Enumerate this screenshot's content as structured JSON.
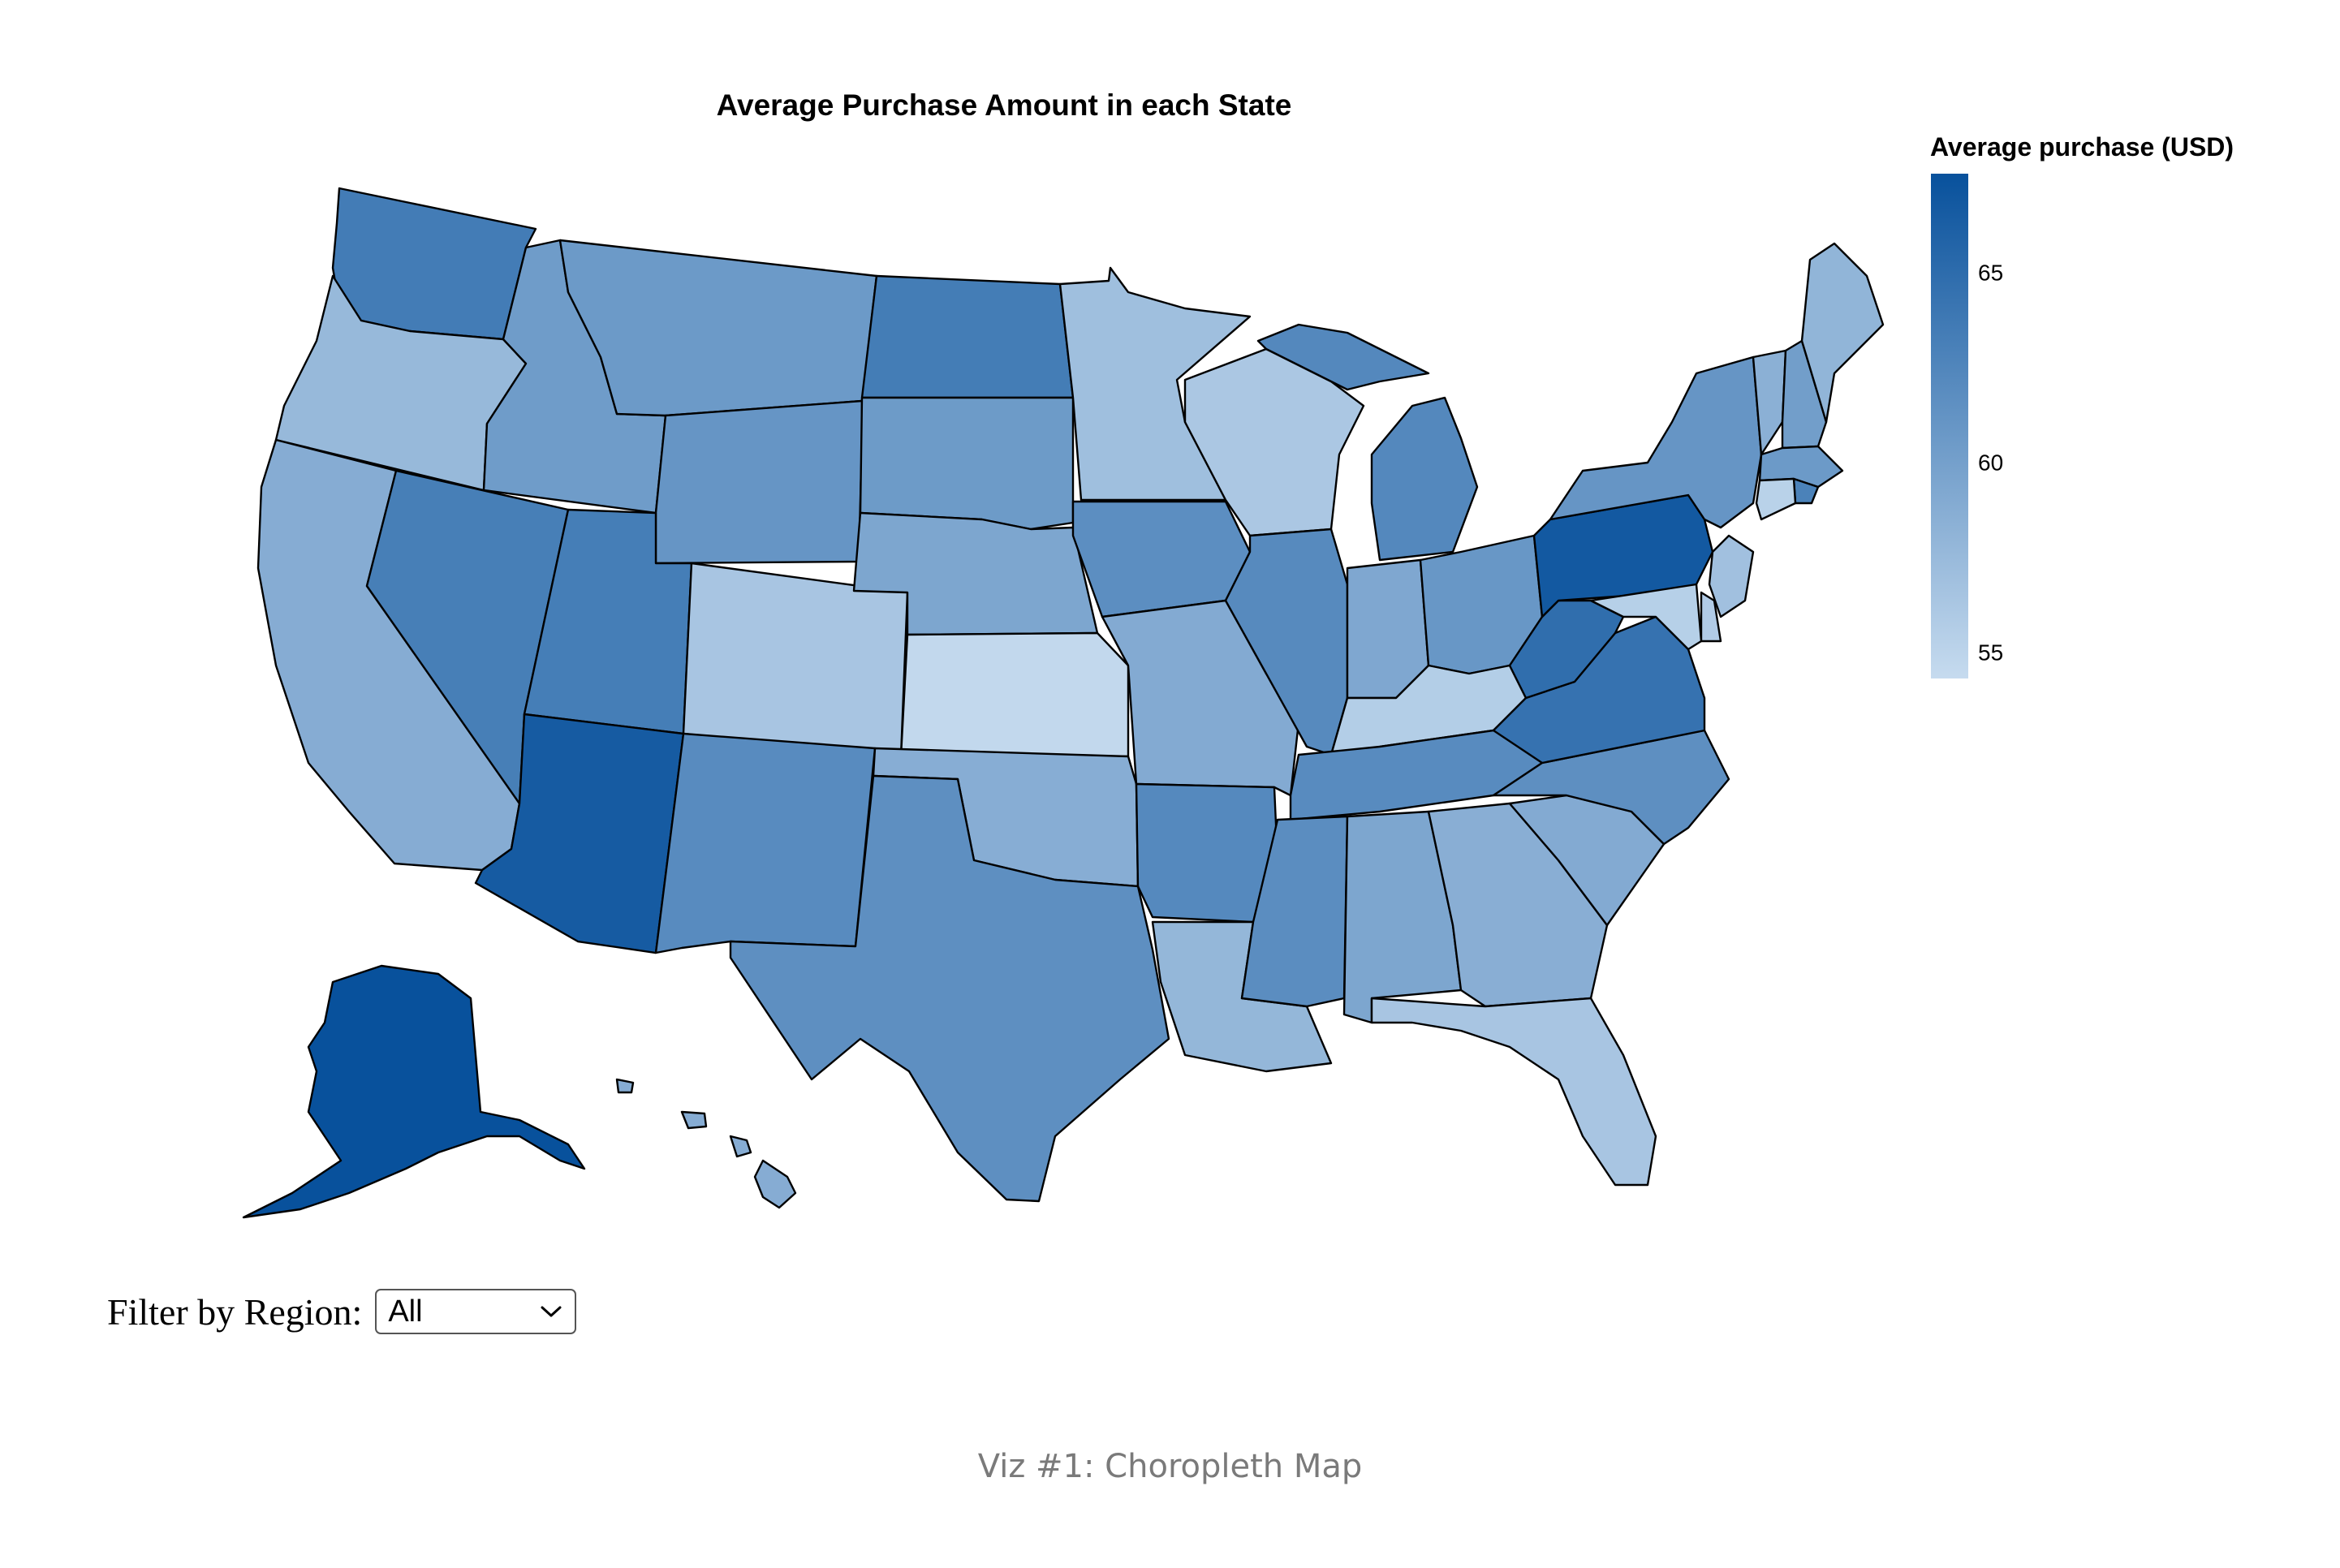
{
  "page": {
    "filter_label": "Filter by Region:",
    "filter_value": "All",
    "caption": "Viz #1: Choropleth Map"
  },
  "chart_data": {
    "type": "choropleth",
    "title": "Average Purchase Amount in each State",
    "legend": {
      "title": "Average purchase (USD)",
      "domain": [
        54.3,
        67.6
      ],
      "ticks": [
        55,
        60,
        65
      ],
      "color_low": "#c6dbef",
      "color_high": "#08519c",
      "placement": "right"
    },
    "states": [
      {
        "name": "Washington",
        "value": 63.5
      },
      {
        "name": "Oregon",
        "value": 57.6
      },
      {
        "name": "California",
        "value": 58.8
      },
      {
        "name": "Idaho",
        "value": 60.4
      },
      {
        "name": "Nevada",
        "value": 63.2
      },
      {
        "name": "Montana",
        "value": 60.6
      },
      {
        "name": "Wyoming",
        "value": 61.0
      },
      {
        "name": "Utah",
        "value": 63.3
      },
      {
        "name": "Arizona",
        "value": 66.6
      },
      {
        "name": "Colorado",
        "value": 56.4
      },
      {
        "name": "New Mexico",
        "value": 62.0
      },
      {
        "name": "North Dakota",
        "value": 63.4
      },
      {
        "name": "South Dakota",
        "value": 60.5
      },
      {
        "name": "Nebraska",
        "value": 59.4
      },
      {
        "name": "Kansas",
        "value": 54.6
      },
      {
        "name": "Oklahoma",
        "value": 58.7
      },
      {
        "name": "Texas",
        "value": 61.6
      },
      {
        "name": "Minnesota",
        "value": 57.0
      },
      {
        "name": "Iowa",
        "value": 61.7
      },
      {
        "name": "Missouri",
        "value": 59.0
      },
      {
        "name": "Arkansas",
        "value": 62.2
      },
      {
        "name": "Louisiana",
        "value": 57.8
      },
      {
        "name": "Wisconsin",
        "value": 56.2
      },
      {
        "name": "Illinois",
        "value": 62.1
      },
      {
        "name": "Michigan",
        "value": 62.3
      },
      {
        "name": "Indiana",
        "value": 59.3
      },
      {
        "name": "Ohio",
        "value": 60.9
      },
      {
        "name": "Kentucky",
        "value": 55.6
      },
      {
        "name": "Tennessee",
        "value": 62.0
      },
      {
        "name": "Mississippi",
        "value": 61.8
      },
      {
        "name": "Alabama",
        "value": 59.4
      },
      {
        "name": "Georgia",
        "value": 58.6
      },
      {
        "name": "Florida",
        "value": 56.4
      },
      {
        "name": "South Carolina",
        "value": 59.0
      },
      {
        "name": "North Carolina",
        "value": 61.6
      },
      {
        "name": "Virginia",
        "value": 64.4
      },
      {
        "name": "West Virginia",
        "value": 64.8
      },
      {
        "name": "Pennsylvania",
        "value": 66.8
      },
      {
        "name": "New York",
        "value": 61.0
      },
      {
        "name": "Vermont",
        "value": 58.4
      },
      {
        "name": "New Hampshire",
        "value": 60.2
      },
      {
        "name": "Maine",
        "value": 58.0
      },
      {
        "name": "Massachusetts",
        "value": 60.6
      },
      {
        "name": "Rhode Island",
        "value": 62.9
      },
      {
        "name": "Connecticut",
        "value": 55.2
      },
      {
        "name": "New Jersey",
        "value": 56.9
      },
      {
        "name": "Delaware",
        "value": 55.8
      },
      {
        "name": "Maryland",
        "value": 55.4
      },
      {
        "name": "Alaska",
        "value": 67.6
      },
      {
        "name": "Hawaii",
        "value": 58.8
      }
    ]
  }
}
